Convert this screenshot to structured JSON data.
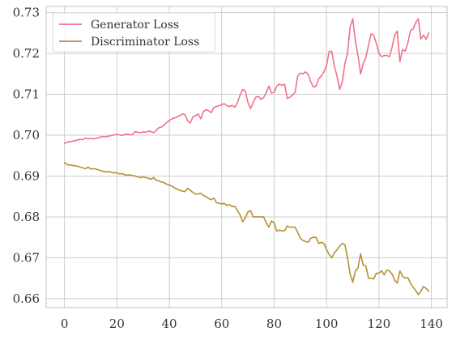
{
  "chart_data": {
    "type": "line",
    "title": "",
    "xlabel": "",
    "ylabel": "",
    "xlim": [
      -7,
      146
    ],
    "ylim": [
      0.6578,
      0.7315
    ],
    "x_ticks": [
      0,
      20,
      40,
      60,
      80,
      100,
      120,
      140
    ],
    "y_ticks": [
      0.66,
      0.67,
      0.68,
      0.69,
      0.7,
      0.71,
      0.72,
      0.73
    ],
    "y_tick_labels": [
      "0.66",
      "0.67",
      "0.68",
      "0.69",
      "0.70",
      "0.71",
      "0.72",
      "0.73"
    ],
    "grid": true,
    "legend_position": "upper-left",
    "x": [
      0,
      1,
      2,
      3,
      4,
      5,
      6,
      7,
      8,
      9,
      10,
      11,
      12,
      13,
      14,
      15,
      16,
      17,
      18,
      19,
      20,
      21,
      22,
      23,
      24,
      25,
      26,
      27,
      28,
      29,
      30,
      31,
      32,
      33,
      34,
      35,
      36,
      37,
      38,
      39,
      40,
      41,
      42,
      43,
      44,
      45,
      46,
      47,
      48,
      49,
      50,
      51,
      52,
      53,
      54,
      55,
      56,
      57,
      58,
      59,
      60,
      61,
      62,
      63,
      64,
      65,
      66,
      67,
      68,
      69,
      70,
      71,
      72,
      73,
      74,
      75,
      76,
      77,
      78,
      79,
      80,
      81,
      82,
      83,
      84,
      85,
      86,
      87,
      88,
      89,
      90,
      91,
      92,
      93,
      94,
      95,
      96,
      97,
      98,
      99,
      100,
      101,
      102,
      103,
      104,
      105,
      106,
      107,
      108,
      109,
      110,
      111,
      112,
      113,
      114,
      115,
      116,
      117,
      118,
      119,
      120,
      121,
      122,
      123,
      124,
      125,
      126,
      127,
      128,
      129,
      130,
      131,
      132,
      133,
      134,
      135,
      136,
      137,
      138,
      139
    ],
    "series": [
      {
        "name": "Generator Loss",
        "color": "#f07189",
        "values": [
          0.698,
          0.6983,
          0.6984,
          0.6985,
          0.6987,
          0.6988,
          0.699,
          0.6989,
          0.6993,
          0.6991,
          0.6992,
          0.6991,
          0.6992,
          0.6994,
          0.6996,
          0.6997,
          0.6996,
          0.6998,
          0.6999,
          0.7001,
          0.7002,
          0.7001,
          0.6999,
          0.7002,
          0.7003,
          0.7001,
          0.7002,
          0.7009,
          0.7007,
          0.7006,
          0.7008,
          0.7007,
          0.701,
          0.7009,
          0.7006,
          0.7012,
          0.7018,
          0.702,
          0.7025,
          0.7031,
          0.7036,
          0.704,
          0.7042,
          0.7045,
          0.7048,
          0.7052,
          0.705,
          0.7035,
          0.703,
          0.7045,
          0.7048,
          0.7052,
          0.704,
          0.7058,
          0.7062,
          0.706,
          0.7055,
          0.7068,
          0.707,
          0.7072,
          0.7075,
          0.7077,
          0.7072,
          0.707,
          0.7073,
          0.7068,
          0.708,
          0.7098,
          0.7112,
          0.7108,
          0.708,
          0.7065,
          0.708,
          0.7093,
          0.7095,
          0.7088,
          0.7092,
          0.7105,
          0.712,
          0.7103,
          0.7105,
          0.712,
          0.7125,
          0.7122,
          0.7125,
          0.709,
          0.7093,
          0.7098,
          0.7105,
          0.7145,
          0.7152,
          0.715,
          0.7155,
          0.7148,
          0.713,
          0.7118,
          0.712,
          0.7138,
          0.7145,
          0.7155,
          0.717,
          0.7205,
          0.7205,
          0.7168,
          0.7145,
          0.7112,
          0.713,
          0.7175,
          0.72,
          0.7265,
          0.7285,
          0.723,
          0.7195,
          0.715,
          0.7175,
          0.719,
          0.722,
          0.7248,
          0.7245,
          0.7225,
          0.72,
          0.7192,
          0.7195,
          0.7195,
          0.7192,
          0.7215,
          0.7245,
          0.7255,
          0.718,
          0.721,
          0.7205,
          0.7225,
          0.7255,
          0.726,
          0.7275,
          0.7285,
          0.7235,
          0.7245,
          0.7235,
          0.725
        ]
      },
      {
        "name": "Discriminator Loss",
        "color": "#b69133",
        "values": [
          0.6933,
          0.6928,
          0.6927,
          0.6926,
          0.6925,
          0.6924,
          0.6922,
          0.692,
          0.6918,
          0.6922,
          0.6917,
          0.6918,
          0.6917,
          0.6915,
          0.6913,
          0.6911,
          0.691,
          0.6911,
          0.6909,
          0.6908,
          0.6908,
          0.6905,
          0.6906,
          0.6903,
          0.6902,
          0.6903,
          0.6901,
          0.69,
          0.6898,
          0.6896,
          0.6898,
          0.6896,
          0.6895,
          0.6892,
          0.6896,
          0.689,
          0.6888,
          0.6885,
          0.6884,
          0.688,
          0.6878,
          0.6875,
          0.6871,
          0.6868,
          0.6865,
          0.6863,
          0.6862,
          0.687,
          0.6865,
          0.686,
          0.6856,
          0.6856,
          0.6858,
          0.6852,
          0.685,
          0.6845,
          0.6842,
          0.6846,
          0.6835,
          0.6833,
          0.6832,
          0.6833,
          0.6828,
          0.683,
          0.6825,
          0.6826,
          0.6815,
          0.6805,
          0.6788,
          0.6798,
          0.6812,
          0.6815,
          0.68,
          0.68,
          0.68,
          0.68,
          0.68,
          0.6785,
          0.6775,
          0.679,
          0.6785,
          0.6765,
          0.6768,
          0.6766,
          0.6766,
          0.6778,
          0.6775,
          0.6775,
          0.6775,
          0.6762,
          0.6748,
          0.6742,
          0.674,
          0.6738,
          0.6748,
          0.675,
          0.675,
          0.6735,
          0.6738,
          0.6735,
          0.672,
          0.6708,
          0.67,
          0.6712,
          0.672,
          0.6728,
          0.6735,
          0.6732,
          0.67,
          0.666,
          0.664,
          0.6668,
          0.6675,
          0.671,
          0.6682,
          0.668,
          0.665,
          0.665,
          0.6648,
          0.6662,
          0.6662,
          0.6668,
          0.6658,
          0.667,
          0.6668,
          0.666,
          0.6645,
          0.6638,
          0.6668,
          0.6655,
          0.665,
          0.6652,
          0.6638,
          0.6628,
          0.662,
          0.661,
          0.6618,
          0.663,
          0.6625,
          0.6618
        ]
      }
    ]
  }
}
